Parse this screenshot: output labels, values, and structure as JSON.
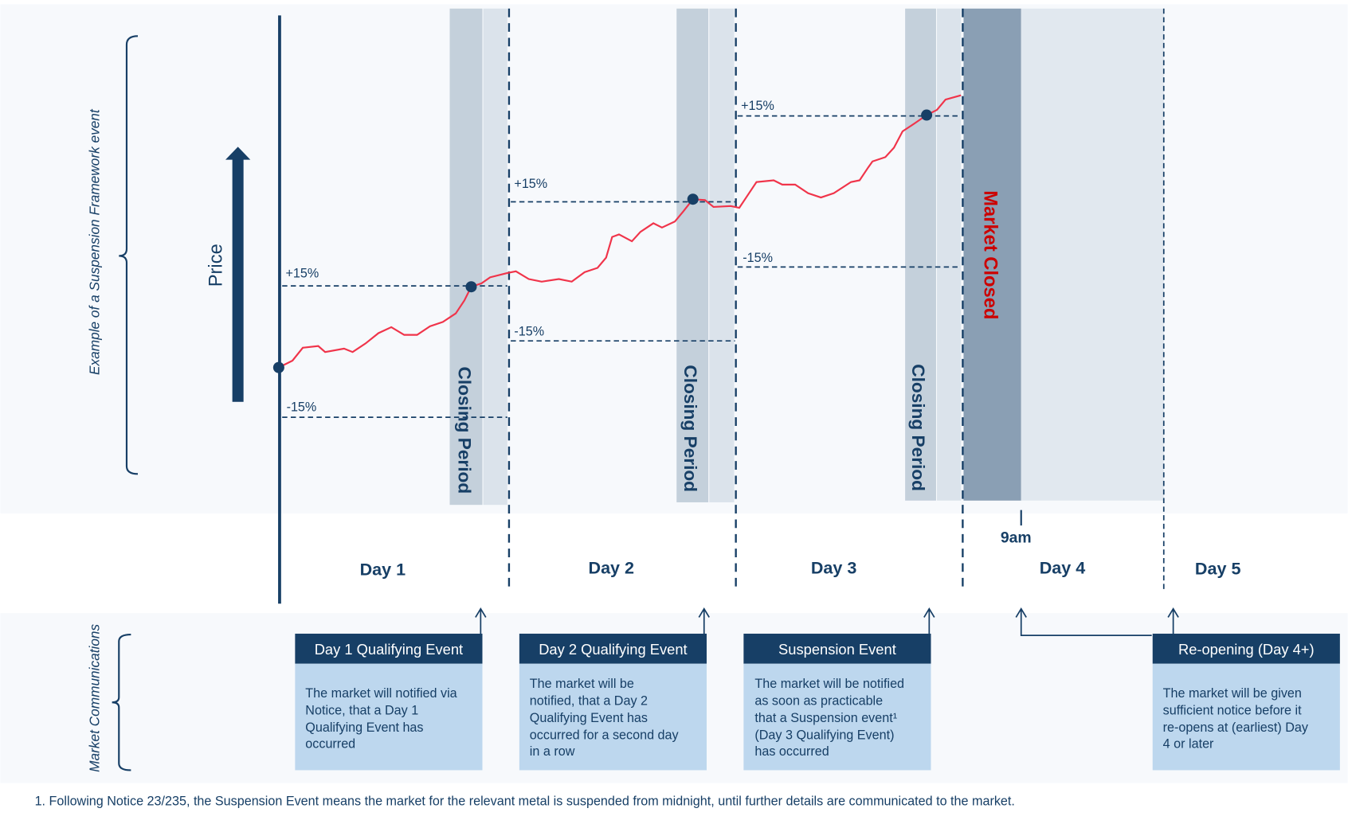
{
  "side_labels": {
    "top": "Example of a Suspension Framework event",
    "bottom": "Market Communications"
  },
  "price_label": "Price",
  "closing_period_label": "Closing Period",
  "market_closed_label": "Market Closed",
  "nine_am_label": "9am",
  "thresholds": {
    "day1": {
      "up": "+15%",
      "down": "-15%"
    },
    "day2": {
      "up": "+15%",
      "down": "-15%"
    },
    "day3": {
      "up": "+15%",
      "down": "-15%"
    }
  },
  "days": [
    "Day 1",
    "Day 2",
    "Day 3",
    "Day 4",
    "Day 5"
  ],
  "communications": [
    {
      "title": "Day 1 Qualifying Event",
      "lines": [
        "The market will notified via",
        "Notice, that a Day 1",
        "Qualifying Event has",
        "occurred"
      ]
    },
    {
      "title": "Day 2 Qualifying Event",
      "lines": [
        "The market will be",
        "notified, that a Day 2",
        "Qualifying Event has",
        "occurred for a second day",
        "in a row"
      ]
    },
    {
      "title": "Suspension Event",
      "lines": [
        "The market will be notified",
        "as soon as practicable",
        "that a Suspension event¹",
        "(Day 3 Qualifying Event)",
        "has occurred"
      ]
    },
    {
      "title": "Re-opening (Day 4+)",
      "lines": [
        "The market will be given",
        "sufficient notice before it",
        "re-opens at (earliest) Day",
        "4 or later"
      ]
    }
  ],
  "footnote": "1.  Following Notice 23/235, the Suspension Event means the market for the relevant metal is suspended from midnight, until further details are communicated to the market.",
  "colors": {
    "navy": "#173f66",
    "price_line": "#f0344a",
    "market_closed_text": "#cc0000",
    "closing_dark": "#c4d0db",
    "closing_light": "#dbe3eb",
    "market_closed_band": "#8a9fb4",
    "suspension_band": "#e1e8ef",
    "comm_body": "#bdd7ee"
  }
}
